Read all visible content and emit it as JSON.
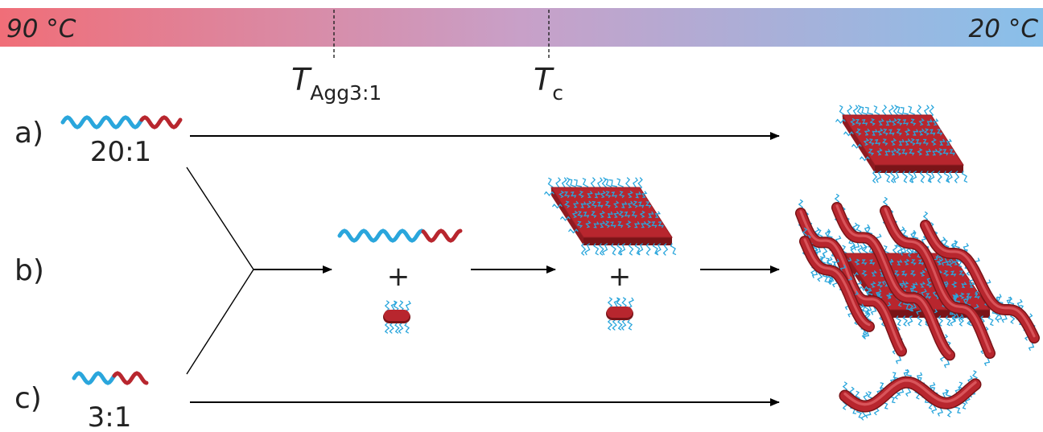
{
  "temperature_bar": {
    "left_label": "90 °C",
    "right_label": "20 °C",
    "color_hot": "#f06e78",
    "color_mid": "#c8a0c8",
    "color_cold": "#88c0ea",
    "markers": [
      {
        "symbol": "T",
        "subscript": "Agg3:1"
      },
      {
        "symbol": "T",
        "subscript": "c"
      }
    ]
  },
  "rows": [
    {
      "label": "a)",
      "ratio": "20:1"
    },
    {
      "label": "b)"
    },
    {
      "label": "c)",
      "ratio": "3:1"
    }
  ],
  "plus_sign": "+",
  "colors": {
    "core_red": "#b8262e",
    "core_red_dark": "#7a1418",
    "corona_blue": "#2aa6dc",
    "arrow": "#000000"
  },
  "icons": {
    "polymer_chain": "wavy-diblock-chain",
    "platelet": "rectangular-platelet-micelle",
    "cylinder": "cylindrical-micelle",
    "small_micelle": "short-seed-micelle"
  }
}
